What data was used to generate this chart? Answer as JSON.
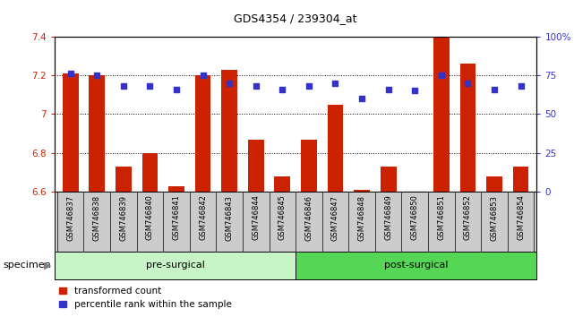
{
  "title": "GDS4354 / 239304_at",
  "samples": [
    "GSM746837",
    "GSM746838",
    "GSM746839",
    "GSM746840",
    "GSM746841",
    "GSM746842",
    "GSM746843",
    "GSM746844",
    "GSM746845",
    "GSM746846",
    "GSM746847",
    "GSM746848",
    "GSM746849",
    "GSM746850",
    "GSM746851",
    "GSM746852",
    "GSM746853",
    "GSM746854"
  ],
  "transformed_count": [
    7.21,
    7.2,
    6.73,
    6.8,
    6.63,
    7.2,
    7.23,
    6.87,
    6.68,
    6.87,
    7.05,
    6.61,
    6.73,
    6.6,
    7.4,
    7.26,
    6.68,
    6.73
  ],
  "percentile_rank": [
    76,
    75,
    68,
    68,
    66,
    75,
    70,
    68,
    66,
    68,
    70,
    60,
    66,
    65,
    75,
    70,
    66,
    68
  ],
  "pre_surgical_count": 9,
  "post_surgical_count": 9,
  "group_labels": [
    "pre-surgical",
    "post-surgical"
  ],
  "group_colors": [
    "#c8f5c8",
    "#55d655"
  ],
  "ylim_left": [
    6.6,
    7.4
  ],
  "baseline": 6.6,
  "ylim_right": [
    0,
    100
  ],
  "yticks_left": [
    6.6,
    6.8,
    7.0,
    7.2,
    7.4
  ],
  "ytick_left_labels": [
    "6.6",
    "6.8",
    "7",
    "7.2",
    "7.4"
  ],
  "yticks_right": [
    0,
    25,
    50,
    75,
    100
  ],
  "ytick_right_labels": [
    "0",
    "25",
    "50",
    "75",
    "100%"
  ],
  "bar_color": "#cc2200",
  "dot_color": "#3333cc",
  "dot_size": 18,
  "bar_width": 0.6,
  "grid_yticks": [
    6.8,
    7.0,
    7.2
  ],
  "left_tick_color": "#cc2200",
  "right_tick_color": "#3333cc",
  "xticklabel_bg": "#cccccc",
  "specimen_label": "specimen",
  "legend_items": [
    {
      "label": "transformed count",
      "color": "#cc2200"
    },
    {
      "label": "percentile rank within the sample",
      "color": "#3333cc"
    }
  ],
  "title_fontsize": 9,
  "tick_fontsize": 7.5,
  "xlabel_fontsize": 6,
  "group_fontsize": 8,
  "legend_fontsize": 7.5
}
